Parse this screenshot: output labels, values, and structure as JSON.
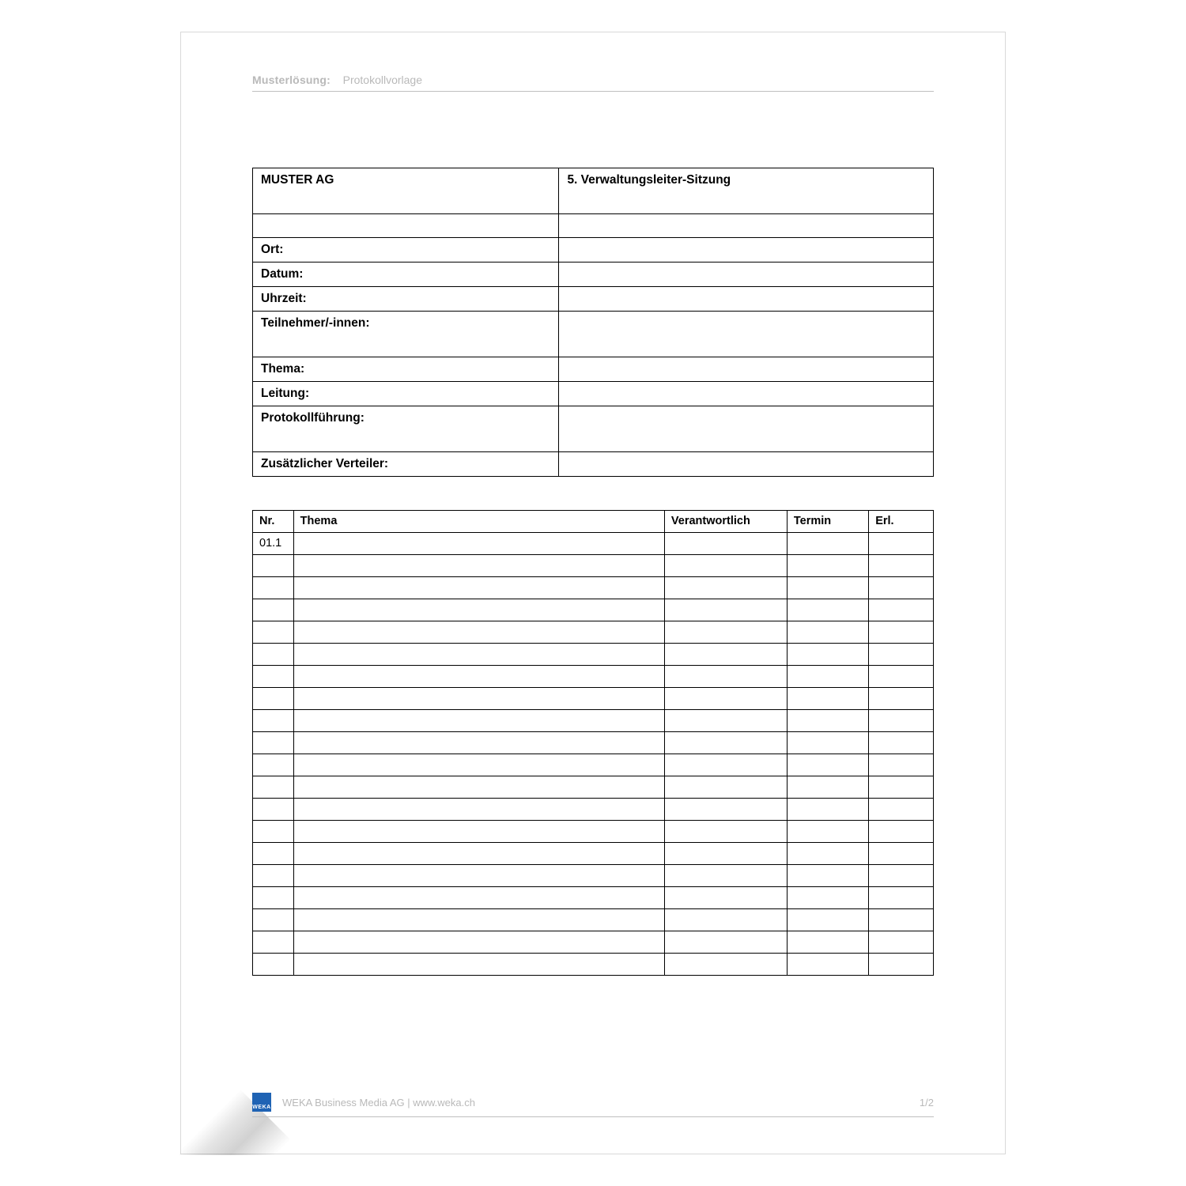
{
  "colors": {
    "page_bg": "#ffffff",
    "page_border": "#d9d9d9",
    "text_muted": "#b9b9b9",
    "rule": "#bfbfbf",
    "table_border": "#000000",
    "logo_bg": "#1f63b4",
    "logo_fg": "#ffffff"
  },
  "typography": {
    "font_family": "Verdana, Arial, sans-serif",
    "header_fontsize_pt": 10.5,
    "info_fontsize_pt": 11.5,
    "agenda_fontsize_pt": 11,
    "footer_fontsize_pt": 10
  },
  "header": {
    "label_bold": "Musterlösung:",
    "label_rest": "Protokollvorlage"
  },
  "info_table": {
    "type": "table",
    "column_widths_pct": [
      45,
      55
    ],
    "rows": [
      {
        "left": "MUSTER AG",
        "right": "5. Verwaltungsleiter-Sitzung",
        "tall": true
      },
      {
        "left": "",
        "right": ""
      },
      {
        "left": "Ort:",
        "right": ""
      },
      {
        "left": "Datum:",
        "right": ""
      },
      {
        "left": "Uhrzeit:",
        "right": ""
      },
      {
        "left": "Teilnehmer/-innen:",
        "right": "",
        "tall": true
      },
      {
        "left": "Thema:",
        "right": ""
      },
      {
        "left": "Leitung:",
        "right": ""
      },
      {
        "left": "Protokollführung:",
        "right": "",
        "tall": true
      },
      {
        "left": "Zusätzlicher Verteiler:",
        "right": ""
      }
    ]
  },
  "agenda_table": {
    "type": "table",
    "columns": [
      "Nr.",
      "Thema",
      "Verantwortlich",
      "Termin",
      "Erl."
    ],
    "column_widths_pct": [
      6,
      54.5,
      18,
      12,
      9.5
    ],
    "rows": [
      [
        "01.1",
        "",
        "",
        "",
        ""
      ],
      [
        "",
        "",
        "",
        "",
        ""
      ],
      [
        "",
        "",
        "",
        "",
        ""
      ],
      [
        "",
        "",
        "",
        "",
        ""
      ],
      [
        "",
        "",
        "",
        "",
        ""
      ],
      [
        "",
        "",
        "",
        "",
        ""
      ],
      [
        "",
        "",
        "",
        "",
        ""
      ],
      [
        "",
        "",
        "",
        "",
        ""
      ],
      [
        "",
        "",
        "",
        "",
        ""
      ],
      [
        "",
        "",
        "",
        "",
        ""
      ],
      [
        "",
        "",
        "",
        "",
        ""
      ],
      [
        "",
        "",
        "",
        "",
        ""
      ],
      [
        "",
        "",
        "",
        "",
        ""
      ],
      [
        "",
        "",
        "",
        "",
        ""
      ],
      [
        "",
        "",
        "",
        "",
        ""
      ],
      [
        "",
        "",
        "",
        "",
        ""
      ],
      [
        "",
        "",
        "",
        "",
        ""
      ],
      [
        "",
        "",
        "",
        "",
        ""
      ],
      [
        "",
        "",
        "",
        "",
        ""
      ],
      [
        "",
        "",
        "",
        "",
        ""
      ]
    ]
  },
  "footer": {
    "logo_text": "WEKA",
    "publisher": "WEKA Business Media AG | www.weka.ch",
    "page_number": "1/2"
  }
}
